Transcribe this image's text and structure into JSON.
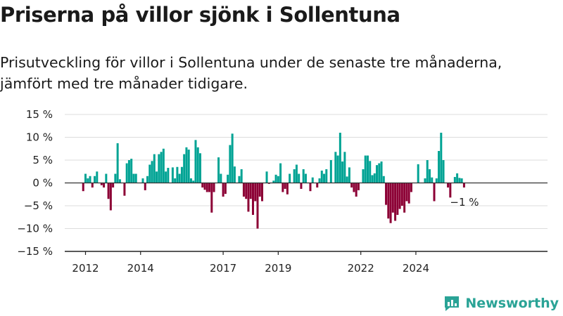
{
  "header": {
    "title": "Priserna på villor sjönk i Sollentuna",
    "subtitle": "Prisutveckling för villor i Sollentuna under de senaste tre månaderna, jämfört med tre månader tidigare."
  },
  "brand": {
    "name": "Newsworthy",
    "icon": "newsworthy-logo-icon",
    "color": "#2aa396"
  },
  "chart_data": {
    "type": "bar",
    "title": "Priserna på villor sjönk i Sollentuna",
    "subtitle": "Prisutveckling för villor i Sollentuna under de senaste tre månaderna, jämfört med tre månader tidigare.",
    "xlabel": "",
    "ylabel": "",
    "ylim": [
      -15,
      15
    ],
    "y_ticks": [
      15,
      10,
      5,
      0,
      -5,
      -10,
      -15
    ],
    "y_tick_labels": [
      "15 %",
      "10 %",
      "5 %",
      "0 %",
      "−5 %",
      "−10 %",
      "−15 %"
    ],
    "x_ticks": [
      "2012-01",
      "2014-01",
      "2017-01",
      "2019-01",
      "2022-01",
      "2024-01"
    ],
    "x_tick_labels": [
      "2012",
      "2014",
      "2017",
      "2019",
      "2022",
      "2024"
    ],
    "positive_color": "#00a394",
    "negative_color": "#8c0035",
    "end_label": "−1 %",
    "grid": true,
    "start_month": "2011-12",
    "values": [
      -1.8,
      2.0,
      1.0,
      1.5,
      -1.0,
      1.5,
      2.5,
      0,
      -0.5,
      -1.0,
      2.0,
      -3.5,
      -6.0,
      -1.0,
      2.0,
      8.7,
      0.8,
      0,
      -2.8,
      4.3,
      5.0,
      5.3,
      2.0,
      2.0,
      0,
      0,
      1.0,
      -1.6,
      1.5,
      4.0,
      4.8,
      6.3,
      2.5,
      6.3,
      6.8,
      7.5,
      2.5,
      3.3,
      0,
      3.4,
      1.0,
      3.5,
      2.0,
      3.5,
      6.3,
      7.8,
      7.3,
      1.0,
      0.5,
      9.4,
      7.8,
      6.5,
      -1.0,
      -1.5,
      -2.0,
      -2.0,
      -6.5,
      -2.0,
      0,
      5.6,
      2.0,
      -3.0,
      -2.4,
      1.8,
      8.3,
      10.8,
      3.6,
      0,
      1.5,
      3.0,
      -3.0,
      -3.5,
      -6.3,
      -3.5,
      -7.0,
      -4.0,
      -10.0,
      -3.0,
      -4.0,
      0,
      2.5,
      -0.2,
      0,
      0.5,
      1.8,
      1.5,
      4.3,
      -2.0,
      -1.3,
      -2.5,
      2.0,
      0,
      3.0,
      4.0,
      2.0,
      -1.3,
      3.0,
      2.0,
      0,
      -1.8,
      1.2,
      0,
      -1.0,
      1.0,
      2.7,
      2.0,
      3.0,
      0,
      5.0,
      0,
      6.8,
      6.0,
      11.0,
      4.7,
      6.8,
      1.4,
      3.4,
      -1.0,
      -2.0,
      -3.0,
      -1.6,
      0,
      3.0,
      6.0,
      6.0,
      4.8,
      1.7,
      2.1,
      3.9,
      4.3,
      4.7,
      1.5,
      -4.8,
      -7.8,
      -8.8,
      -6.5,
      -8.3,
      -7.0,
      -5.7,
      -5.0,
      -6.5,
      -4.0,
      -4.5,
      -2.0,
      0,
      0,
      4.1,
      0,
      0,
      1.0,
      5.0,
      3.0,
      1.2,
      -4.0,
      1.0,
      7.0,
      11.0,
      5.0,
      0,
      -1.0,
      -3.2,
      0,
      1.3,
      2.1,
      1.1,
      1.0,
      -1.0
    ]
  }
}
